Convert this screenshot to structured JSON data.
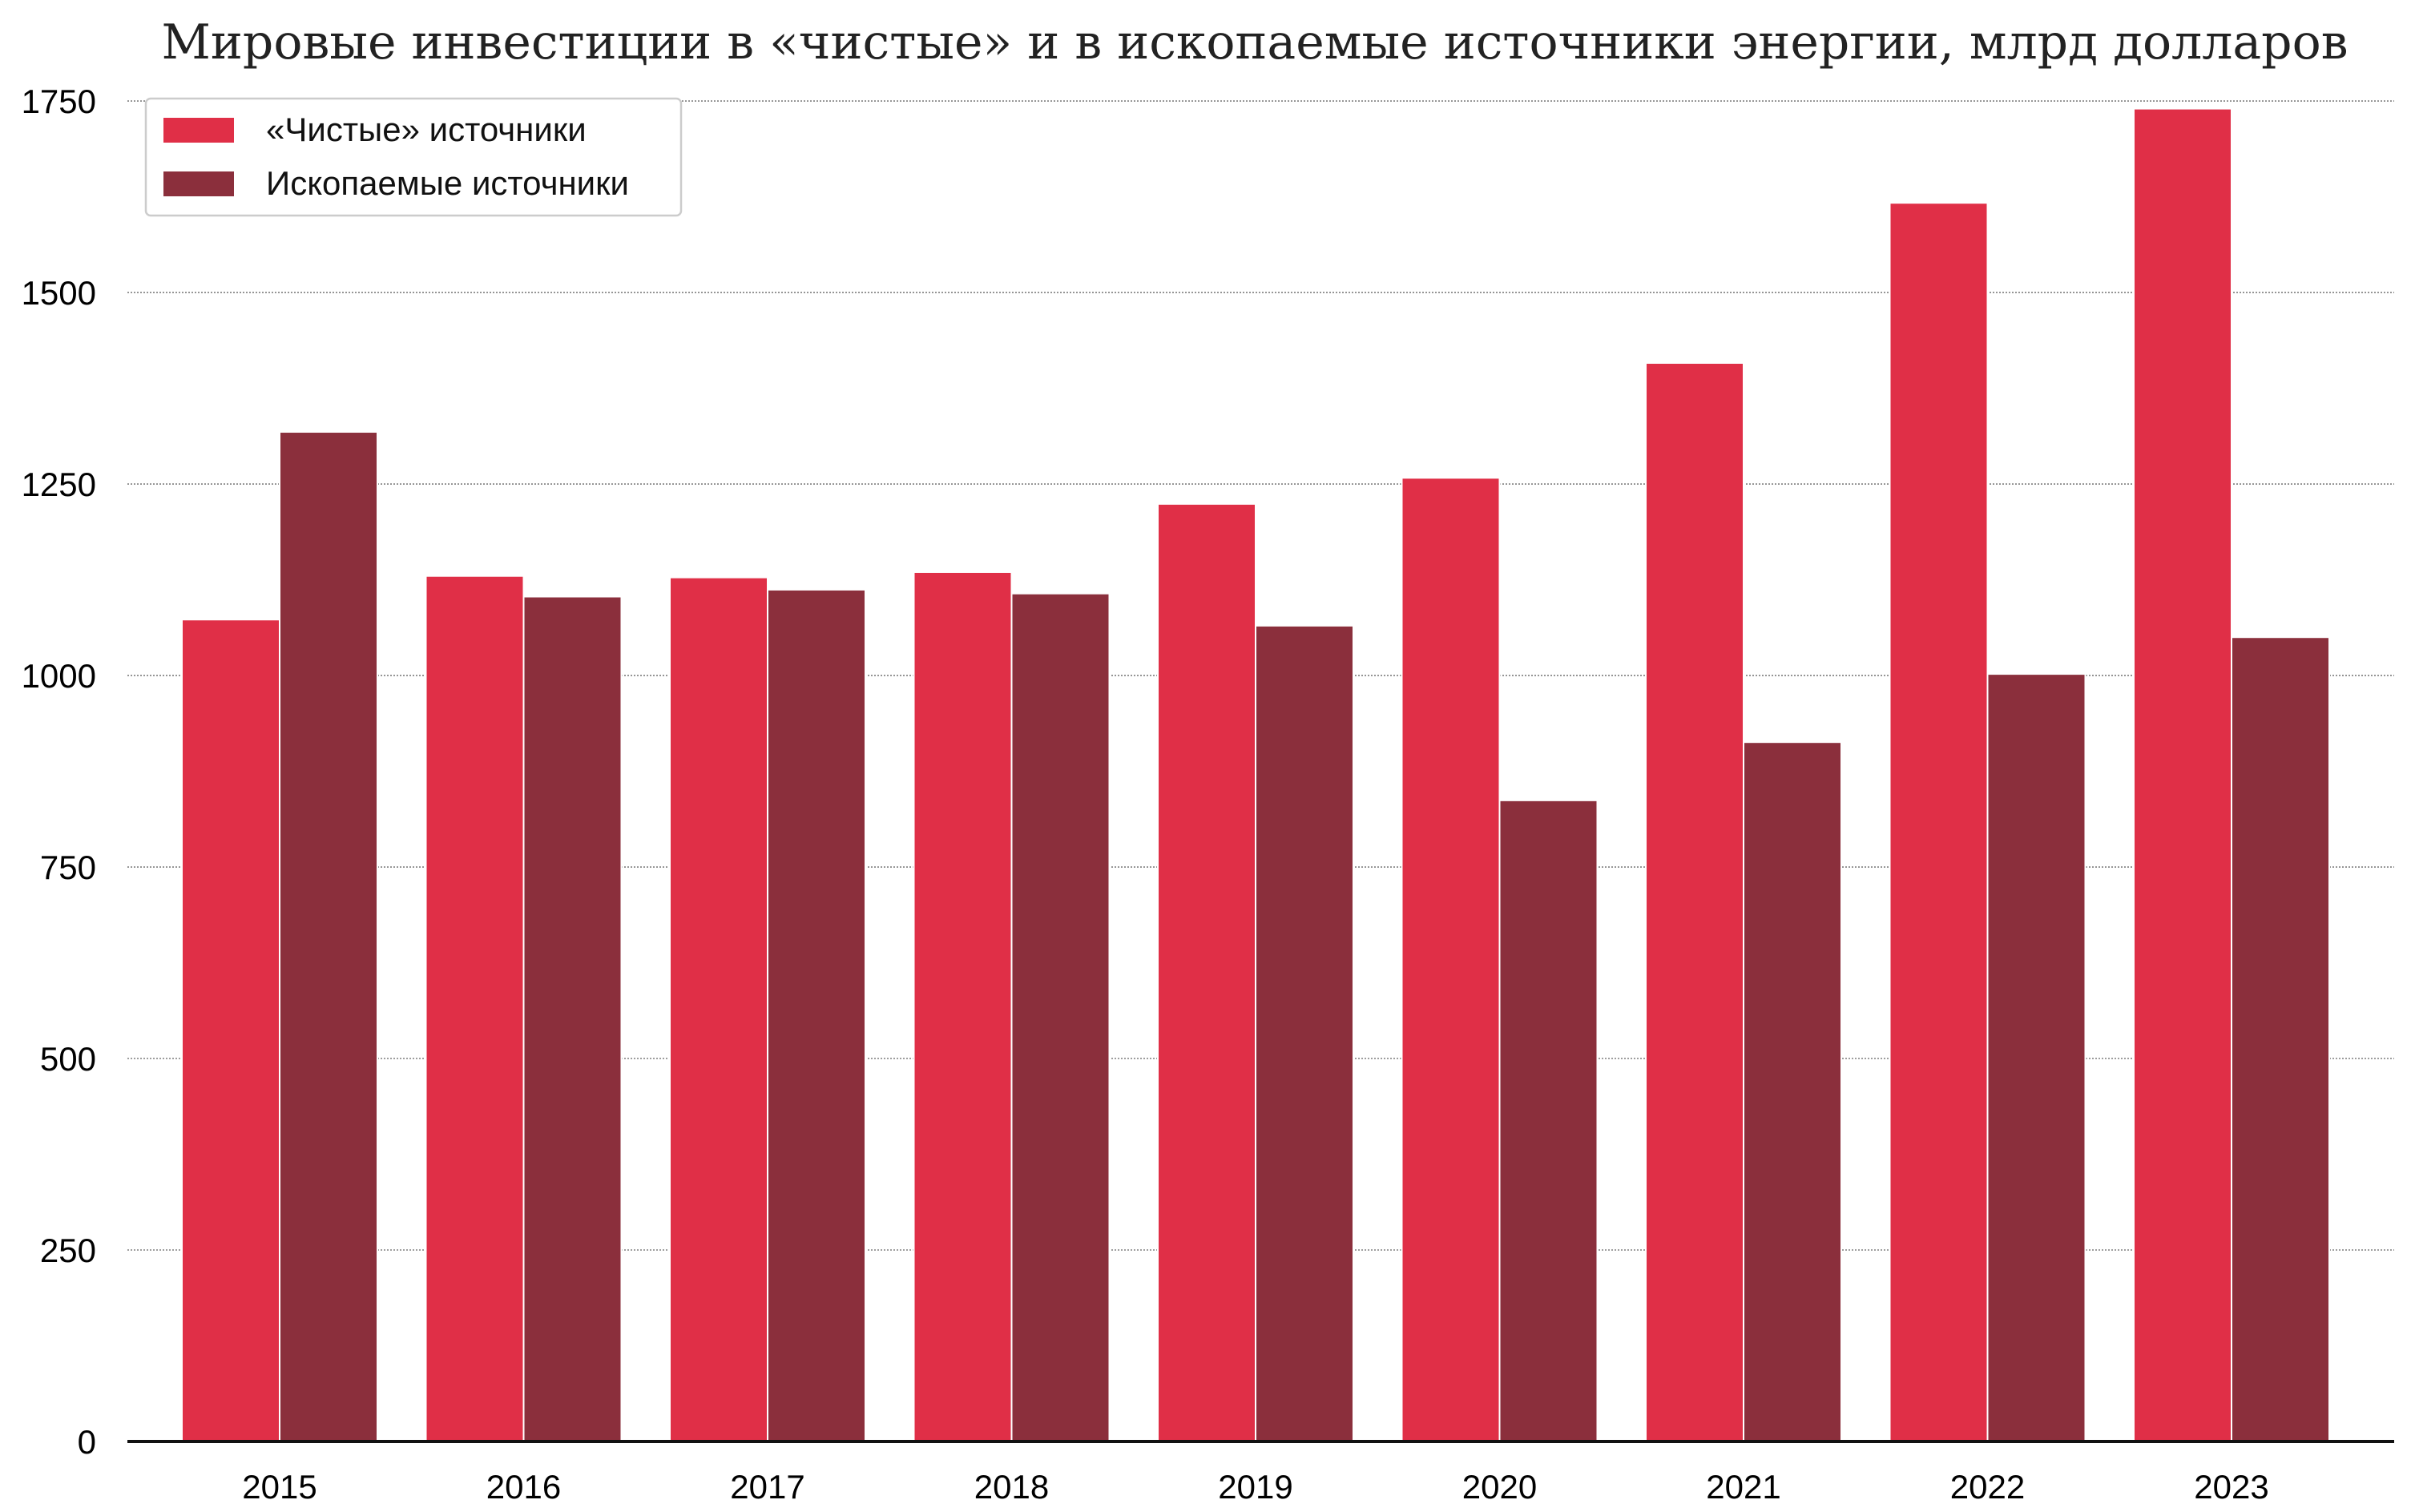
{
  "chart_data": {
    "type": "bar",
    "title": "Мировые инвестиции в «чистые» и в ископаемые источники энергии, млрд долларов",
    "xlabel": "",
    "ylabel": "",
    "categories": [
      "2015",
      "2016",
      "2017",
      "2018",
      "2019",
      "2020",
      "2021",
      "2022",
      "2023"
    ],
    "series": [
      {
        "name": "«Чистые» источники",
        "color": "#e02f47",
        "values": [
          1073,
          1130,
          1128,
          1135,
          1224,
          1258,
          1408,
          1617,
          1740
        ]
      },
      {
        "name": "Ископаемые источники",
        "color": "#8b2f3c",
        "values": [
          1318,
          1103,
          1112,
          1107,
          1065,
          837,
          913,
          1002,
          1050
        ]
      }
    ],
    "ylim": [
      0,
      1840
    ],
    "yticks": [
      0,
      250,
      500,
      750,
      1000,
      1250,
      1500,
      1750
    ],
    "ytick_labels": [
      "0",
      "250",
      "500",
      "750",
      "1000",
      "1250",
      "1500",
      "1750"
    ],
    "grid": "horizontal-dotted",
    "legend_position": "top-left"
  }
}
